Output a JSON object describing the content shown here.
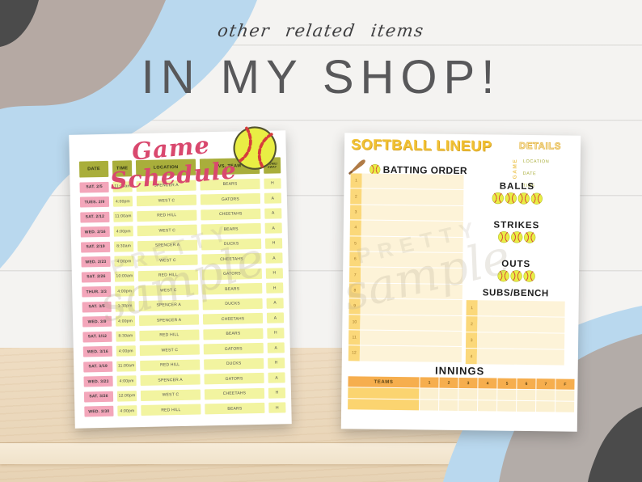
{
  "header": {
    "tagline": "other related items",
    "title": "IN MY SHOP!"
  },
  "schedule_sheet": {
    "title": "Game Schedule",
    "columns": [
      "DATE",
      "TIME",
      "LOCATION",
      "VS. TEAM",
      "HOME/ AWAY"
    ],
    "rows": [
      [
        "SAT. 2/5",
        "11:00am",
        "SPENCER A",
        "BEARS",
        "H"
      ],
      [
        "TUES. 2/9",
        "4:00pm",
        "WEST C",
        "GATORS",
        "A"
      ],
      [
        "SAT. 2/12",
        "11:00am",
        "RED HILL",
        "CHEETAHS",
        "A"
      ],
      [
        "WED. 2/16",
        "4:00pm",
        "WEST C",
        "BEARS",
        "A"
      ],
      [
        "SAT. 2/19",
        "8:30am",
        "SPENCER A",
        "DUCKS",
        "H"
      ],
      [
        "WED. 2/23",
        "4:00pm",
        "WEST C",
        "CHEETAHS",
        "A"
      ],
      [
        "SAT. 2/26",
        "10:00am",
        "RED HILL",
        "GATORS",
        "H"
      ],
      [
        "THUR. 3/3",
        "4:00pm",
        "WEST C",
        "BEARS",
        "H"
      ],
      [
        "SAT. 3/5",
        "1:30pm",
        "SPENCER A",
        "DUCKS",
        "A"
      ],
      [
        "WED. 3/9",
        "4:00pm",
        "SPENCER A",
        "CHEETAHS",
        "A"
      ],
      [
        "SAT. 3/12",
        "8:30am",
        "RED HILL",
        "BEARS",
        "H"
      ],
      [
        "WED. 3/16",
        "4:00pm",
        "WEST C",
        "GATORS",
        "A"
      ],
      [
        "SAT. 3/19",
        "11:00am",
        "RED HILL",
        "DUCKS",
        "H"
      ],
      [
        "WED. 3/23",
        "4:00pm",
        "SPENCER A",
        "GATORS",
        "A"
      ],
      [
        "SAT. 3/26",
        "12:00pm",
        "WEST C",
        "CHEETAHS",
        "H"
      ],
      [
        "WED. 3/30",
        "4:00pm",
        "RED HILL",
        "BEARS",
        "H"
      ]
    ]
  },
  "lineup_sheet": {
    "title": "SOFTBALL LINEUP",
    "details_label": "DETAILS",
    "game_label": "GAME",
    "detail_fields": [
      "LOCATION",
      "DATE",
      "TIME"
    ],
    "batting_order_label": "BATTING ORDER",
    "batting_slots": [
      "1",
      "2",
      "3",
      "4",
      "5",
      "6",
      "7",
      "8",
      "9",
      "10",
      "11",
      "12"
    ],
    "counters": [
      {
        "label": "BALLS",
        "count": 4
      },
      {
        "label": "STRIKES",
        "count": 3
      },
      {
        "label": "OUTS",
        "count": 3
      }
    ],
    "subs_label": "SUBS/BENCH",
    "subs_slots": [
      "1",
      "2",
      "3",
      "4"
    ],
    "innings": {
      "label": "INNINGS",
      "header": [
        "TEAMS",
        "1",
        "2",
        "3",
        "4",
        "5",
        "6",
        "7",
        "F"
      ],
      "row_count": 2
    }
  },
  "watermark": {
    "line1": "PRETTY",
    "line2": "sample"
  },
  "colors": {
    "title_gray": "#58585a",
    "script_pink": "#d9486e",
    "olive_header": "#a9ae3b",
    "cell_pink": "#f3a6ba",
    "cell_yellow": "#f2f4a0",
    "lineup_gold": "#f2c233",
    "innings_orange": "#f6ae4e",
    "slot_yellow": "#fbd87a",
    "cream": "#fdf3d8",
    "blob_blue": "#b9d8ee",
    "blob_taupe": "#b5a9a3",
    "blob_charcoal": "#4b4b4b",
    "softball_yellow": "#e9ee44",
    "stitch_red": "#d63c3c"
  }
}
